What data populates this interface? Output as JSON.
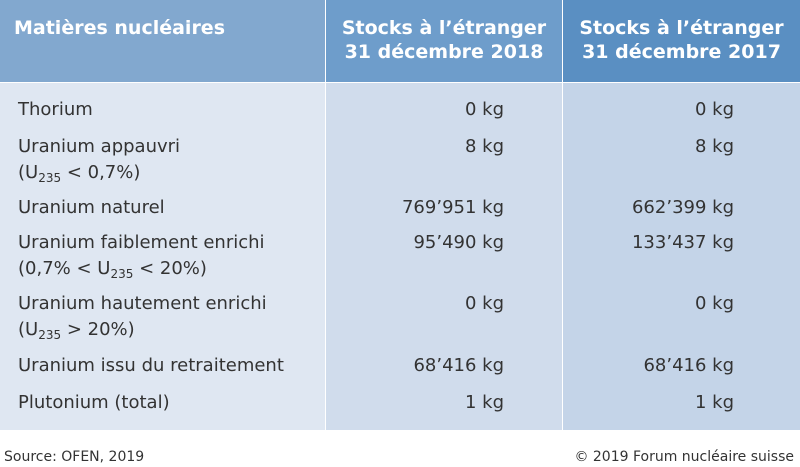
{
  "header": {
    "columns": [
      "Matières nucléaires",
      {
        "line1": "Stocks à l’étranger",
        "line2": "31 décembre 2018"
      },
      {
        "line1": "Stocks à l’étranger",
        "line2": "31 décembre 2017"
      }
    ]
  },
  "table": {
    "rows": [
      {
        "label": "Thorium",
        "v2018": "0 kg",
        "v2017": "0 kg"
      },
      {
        "label": "Uranium appauvri",
        "note": {
          "pre": "(U",
          "sub": "235",
          "post": " < 0,7%)"
        },
        "v2018": "8 kg",
        "v2017": "8 kg"
      },
      {
        "label": "Uranium naturel",
        "v2018": "769’951 kg",
        "v2017": "662’399 kg"
      },
      {
        "label": "Uranium faiblement enrichi",
        "note": {
          "pre": "(0,7% < U",
          "sub": "235",
          "post": " < 20%)"
        },
        "v2018": "95’490 kg",
        "v2017": "133’437 kg"
      },
      {
        "label": "Uranium hautement enrichi",
        "note": {
          "pre": "(U",
          "sub": "235",
          "post": " > 20%)"
        },
        "v2018": "0 kg",
        "v2017": "0 kg"
      },
      {
        "label": "Uranium issu du retraitement",
        "v2018": "68’416 kg",
        "v2017": "68’416 kg"
      },
      {
        "label": "Plutonium (total)",
        "v2018": "1 kg",
        "v2017": "1 kg"
      }
    ]
  },
  "footer": {
    "source": "Source: OFEN, 2019",
    "copyright": "© 2019 Forum nucléaire suisse"
  }
}
